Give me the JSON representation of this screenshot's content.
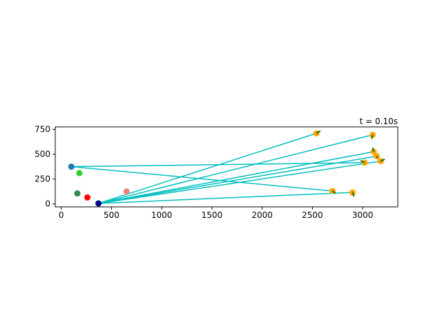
{
  "chart_data": {
    "type": "scatter",
    "annotation": "t = 0.10s",
    "xlim": [
      -60,
      3350
    ],
    "ylim": [
      -30,
      775
    ],
    "xticks": [
      0,
      500,
      1000,
      1500,
      2000,
      2500,
      3000
    ],
    "yticks": [
      0,
      250,
      500,
      750
    ],
    "grid": false,
    "colors": {
      "line": "#00bfbf",
      "orange": "#ffa500",
      "arrow": "#006400",
      "hub": "#00008b",
      "blue": "#1f77b4",
      "green": "#32cd32",
      "seagreen": "#2e8b57",
      "red": "#ff0000",
      "pink": "#f08080"
    },
    "hubs": [
      {
        "name": "hub-navy",
        "x": 370,
        "y": 5,
        "color": "#00008b"
      },
      {
        "name": "hub-blue",
        "x": 100,
        "y": 375,
        "color": "#1f77b4"
      }
    ],
    "other_points": [
      {
        "name": "point-green",
        "x": 180,
        "y": 310,
        "color": "#32cd32"
      },
      {
        "name": "point-seagreen",
        "x": 160,
        "y": 105,
        "color": "#2e8b57"
      },
      {
        "name": "point-red",
        "x": 260,
        "y": 65,
        "color": "#ff0000"
      },
      {
        "name": "point-pink",
        "x": 650,
        "y": 125,
        "color": "#f08080"
      }
    ],
    "targets": [
      {
        "x": 2540,
        "y": 710,
        "hub": 0,
        "dx": 40,
        "dy": 25
      },
      {
        "x": 3100,
        "y": 695,
        "hub": 0,
        "dx": -10,
        "dy": -40
      },
      {
        "x": 3110,
        "y": 525,
        "hub": 0,
        "dx": -10,
        "dy": 40
      },
      {
        "x": 3140,
        "y": 480,
        "hub": 0,
        "dx": 10,
        "dy": -20
      },
      {
        "x": 3180,
        "y": 430,
        "hub": 0,
        "dx": 40,
        "dy": 20
      },
      {
        "x": 3020,
        "y": 415,
        "hub": 1,
        "dx": -40,
        "dy": 20
      },
      {
        "x": 2700,
        "y": 130,
        "hub": 1,
        "dx": 30,
        "dy": -25
      },
      {
        "x": 2900,
        "y": 115,
        "hub": 0,
        "dx": 15,
        "dy": -40
      }
    ]
  }
}
